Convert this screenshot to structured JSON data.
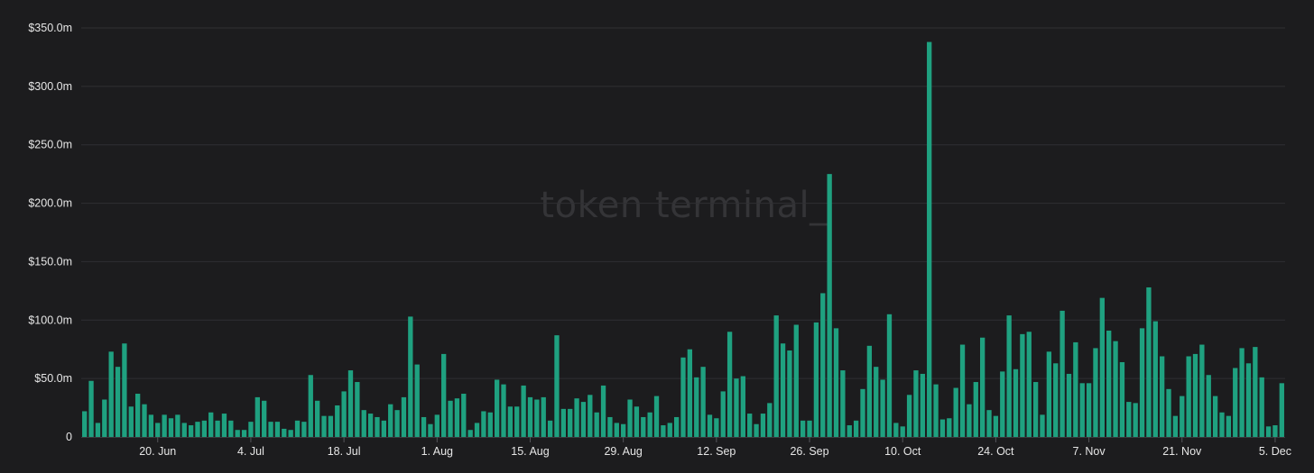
{
  "watermark": "token terminal_",
  "colors": {
    "background": "#1c1c1e",
    "bar": "#1fa180",
    "grid": "#2f2f33",
    "text": "#e6e6e6",
    "watermark": "#343437"
  },
  "chart_data": {
    "type": "bar",
    "title": "",
    "xlabel": "",
    "ylabel": "",
    "ylim": [
      0,
      350
    ],
    "grid": true,
    "y_ticks": [
      {
        "value": 0,
        "label": "0"
      },
      {
        "value": 50,
        "label": "$50.0m"
      },
      {
        "value": 100,
        "label": "$100.0m"
      },
      {
        "value": 150,
        "label": "$150.0m"
      },
      {
        "value": 200,
        "label": "$200.0m"
      },
      {
        "value": 250,
        "label": "$250.0m"
      },
      {
        "value": 300,
        "label": "$300.0m"
      },
      {
        "value": 350,
        "label": "$350.0m"
      }
    ],
    "x_ticks": [
      {
        "index": 11,
        "label": "20. Jun"
      },
      {
        "index": 25,
        "label": "4. Jul"
      },
      {
        "index": 39,
        "label": "18. Jul"
      },
      {
        "index": 53,
        "label": "1. Aug"
      },
      {
        "index": 67,
        "label": "15. Aug"
      },
      {
        "index": 81,
        "label": "29. Aug"
      },
      {
        "index": 95,
        "label": "12. Sep"
      },
      {
        "index": 109,
        "label": "26. Sep"
      },
      {
        "index": 123,
        "label": "10. Oct"
      },
      {
        "index": 137,
        "label": "24. Oct"
      },
      {
        "index": 151,
        "label": "7. Nov"
      },
      {
        "index": 165,
        "label": "21. Nov"
      },
      {
        "index": 179,
        "label": "5. Dec"
      }
    ],
    "values": [
      22,
      48,
      12,
      32,
      73,
      60,
      80,
      26,
      37,
      28,
      19,
      12,
      19,
      16,
      19,
      12,
      10,
      13,
      14,
      21,
      14,
      20,
      14,
      6,
      6,
      13,
      34,
      31,
      13,
      13,
      7,
      6,
      14,
      13,
      53,
      31,
      18,
      18,
      27,
      39,
      57,
      47,
      23,
      20,
      17,
      14,
      28,
      23,
      34,
      103,
      62,
      17,
      11,
      19,
      71,
      31,
      33,
      37,
      6,
      12,
      22,
      21,
      49,
      45,
      26,
      26,
      44,
      34,
      32,
      34,
      14,
      87,
      24,
      24,
      33,
      30,
      36,
      21,
      44,
      17,
      12,
      11,
      32,
      26,
      17,
      21,
      35,
      10,
      12,
      17,
      68,
      75,
      51,
      60,
      19,
      16,
      39,
      90,
      50,
      52,
      20,
      11,
      20,
      29,
      104,
      80,
      74,
      96,
      14,
      14,
      98,
      123,
      225,
      93,
      57,
      10,
      14,
      41,
      78,
      60,
      49,
      105,
      12,
      9,
      36,
      57,
      54,
      338,
      45,
      15,
      16,
      42,
      79,
      28,
      47,
      85,
      23,
      18,
      56,
      104,
      58,
      88,
      90,
      47,
      19,
      73,
      63,
      108,
      54,
      81,
      46,
      46,
      76,
      119,
      91,
      82,
      64,
      30,
      29,
      93,
      128,
      99,
      69,
      41,
      18,
      35,
      69,
      71,
      79,
      53,
      35,
      21,
      18,
      59,
      76,
      63,
      77,
      51,
      9,
      10,
      46
    ]
  }
}
